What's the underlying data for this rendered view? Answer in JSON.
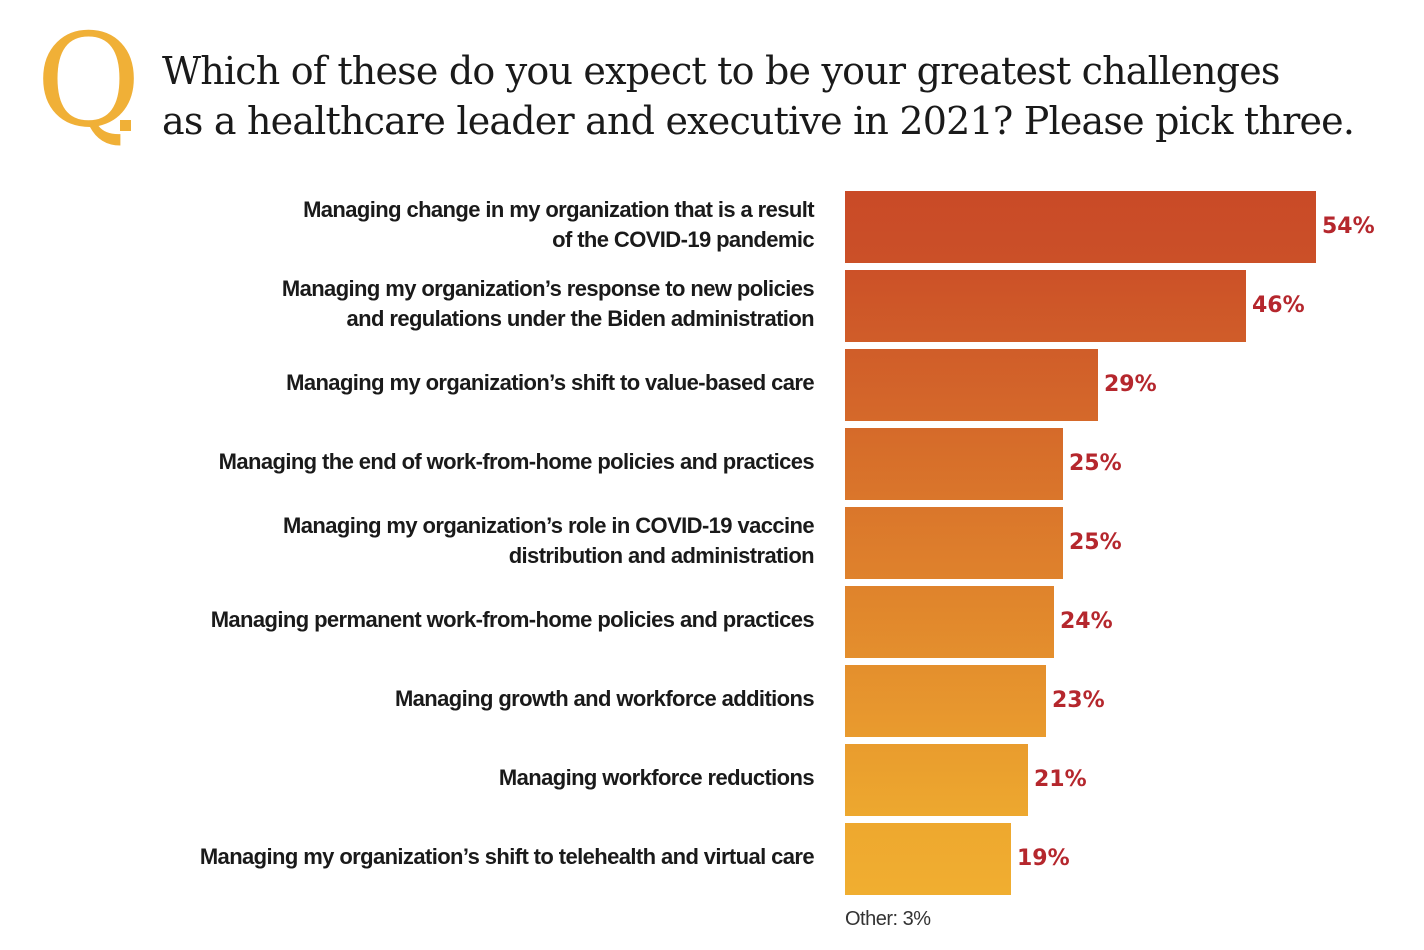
{
  "header": {
    "q_letter": "Q",
    "question_line1": "Which of these do you expect to be your greatest challenges",
    "question_line2": "as a healthcare leader and executive in 2021? Please pick three."
  },
  "chart_data": {
    "type": "bar",
    "orientation": "horizontal",
    "title": "Which of these do you expect to be your greatest challenges as a healthcare leader and executive in 2021? Please pick three.",
    "categories": [
      [
        "Managing change in my organization that is a result",
        "of the COVID-19 pandemic"
      ],
      [
        "Managing my organization’s response to new policies",
        "and regulations under the Biden administration"
      ],
      [
        "Managing my organization’s shift to value-based care"
      ],
      [
        "Managing the end of work-from-home policies and practices"
      ],
      [
        "Managing my organization’s role in COVID-19 vaccine",
        "distribution and administration"
      ],
      [
        "Managing permanent work-from-home policies and practices"
      ],
      [
        "Managing growth and workforce additions"
      ],
      [
        "Managing workforce reductions"
      ],
      [
        "Managing my organization’s shift to telehealth and virtual care"
      ]
    ],
    "values": [
      54,
      46,
      29,
      25,
      25,
      24,
      23,
      21,
      19
    ],
    "value_labels": [
      "54%",
      "46%",
      "29%",
      "25%",
      "25%",
      "24%",
      "23%",
      "21%",
      "19%"
    ],
    "unit": "%",
    "xlim": [
      0,
      54
    ],
    "grid": false,
    "colors": {
      "top": "#c94a27",
      "bottom": "#f0ae30",
      "value_label": "#b5272d",
      "accent": "#f0b037"
    },
    "footnote": "Other: 3%"
  }
}
